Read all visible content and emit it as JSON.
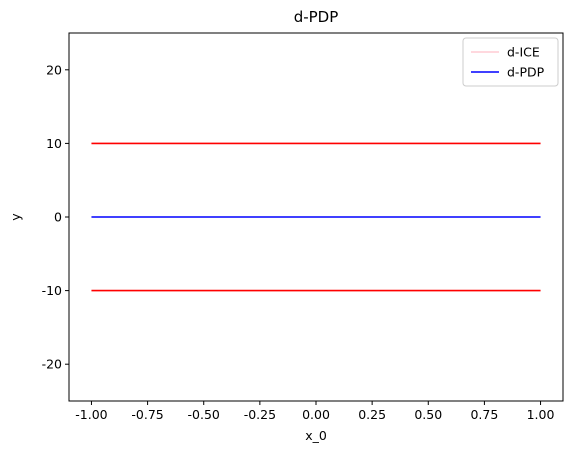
{
  "chart_data": {
    "type": "line",
    "title": "d-PDP",
    "xlabel": "x_0",
    "ylabel": "y",
    "xlim": [
      -1.1,
      1.1
    ],
    "ylim": [
      -25,
      25
    ],
    "xticks": [
      -1.0,
      -0.75,
      -0.5,
      -0.25,
      0.0,
      0.25,
      0.5,
      0.75,
      1.0
    ],
    "xtick_labels": [
      "-1.00",
      "-0.75",
      "-0.50",
      "-0.25",
      "0.00",
      "0.25",
      "0.50",
      "0.75",
      "1.00"
    ],
    "yticks": [
      -20,
      -10,
      0,
      10,
      20
    ],
    "ytick_labels": [
      "-20",
      "-10",
      "0",
      "10",
      "20"
    ],
    "grid": false,
    "legend_position": "top-right",
    "series": [
      {
        "name": "d-ICE",
        "color": "#ffc0cb",
        "x": [
          -1.0,
          1.0
        ],
        "y": [
          10,
          10
        ],
        "in_legend": true
      },
      {
        "name": "d-ICE",
        "color": "#ffc0cb",
        "x": [
          -1.0,
          1.0
        ],
        "y": [
          -10,
          -10
        ],
        "in_legend": false
      },
      {
        "name": "d-PDP",
        "color": "#0000ff",
        "x": [
          -1.0,
          1.0
        ],
        "y": [
          0,
          0
        ],
        "in_legend": true
      },
      {
        "name": "",
        "color": "#ff0000",
        "x": [
          -1.0,
          1.0
        ],
        "y": [
          10,
          10
        ],
        "in_legend": false
      },
      {
        "name": "",
        "color": "#ff0000",
        "x": [
          -1.0,
          1.0
        ],
        "y": [
          -10,
          -10
        ],
        "in_legend": false
      }
    ]
  }
}
